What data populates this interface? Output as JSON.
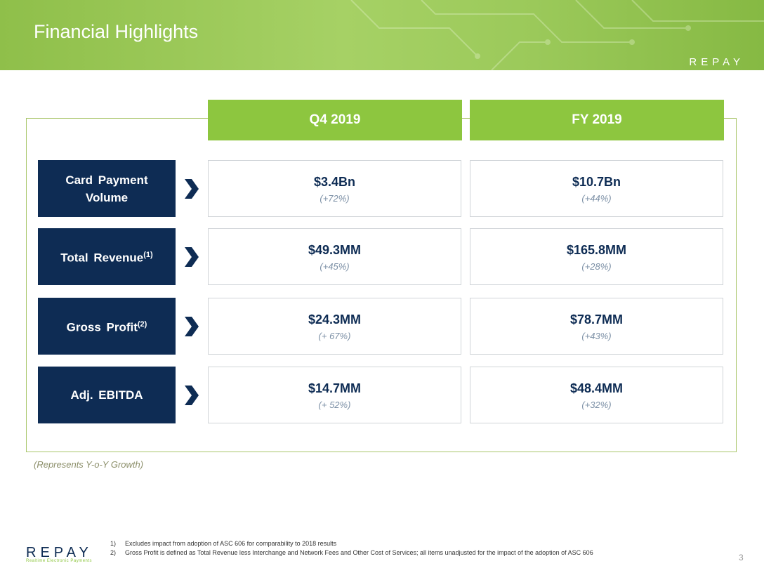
{
  "header": {
    "title": "Financial Highlights",
    "logo": "REPAY"
  },
  "table": {
    "columns": [
      "Q4 2019",
      "FY 2019"
    ],
    "rows": [
      {
        "label": "Card Payment Volume",
        "cells": [
          {
            "value": "$3.4Bn",
            "growth": "(+72%)"
          },
          {
            "value": "$10.7Bn",
            "growth": "(+44%)"
          }
        ]
      },
      {
        "label": "Total Revenue",
        "note": "(1)",
        "cells": [
          {
            "value": "$49.3MM",
            "growth": "(+45%)"
          },
          {
            "value": "$165.8MM",
            "growth": "(+28%)"
          }
        ]
      },
      {
        "label": "Gross Profit",
        "note": "(2)",
        "cells": [
          {
            "value": "$24.3MM",
            "growth": "(+ 67%)"
          },
          {
            "value": "$78.7MM",
            "growth": "(+43%)"
          }
        ]
      },
      {
        "label": "Adj. EBITDA",
        "cells": [
          {
            "value": "$14.7MM",
            "growth": "(+ 52%)"
          },
          {
            "value": "$48.4MM",
            "growth": "(+32%)"
          }
        ]
      }
    ]
  },
  "note": "(Represents Y-o-Y Growth)",
  "footnotes": [
    {
      "marker": "1)",
      "text": "Excludes impact from adoption of ASC 606 for comparability to 2018 results"
    },
    {
      "marker": "2)",
      "text": "Gross Profit is defined as Total Revenue less Interchange and Network Fees and Other Cost of Services; all items unadjusted for the impact of the adoption of ASC 606"
    }
  ],
  "footer": {
    "logo": "REPAY",
    "tagline": "Realtime Electronic Payments",
    "page": "3"
  }
}
